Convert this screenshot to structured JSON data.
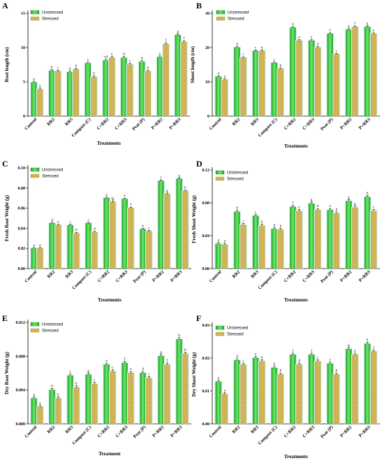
{
  "colors": {
    "unstressed_fill": "#2fc42f",
    "unstressed_highlight": "#7ff07f",
    "stressed_fill": "#c9c27a",
    "stressed_stripe": "#d9a020",
    "glow": "#d8f2f6",
    "axis": "#000000"
  },
  "chart_data": [
    {
      "panel": "A",
      "type": "bar",
      "categories": [
        "Control",
        "RR2",
        "RR3",
        "Compost (C)",
        "C+RR2",
        "C+RR3",
        "Peat (P)",
        "P+RR2",
        "P+RR3"
      ],
      "series": [
        {
          "name": "Unstressed",
          "values": [
            4.9,
            6.6,
            6.4,
            7.7,
            8.1,
            8.5,
            7.9,
            8.6,
            11.8
          ],
          "errors": [
            0.2,
            0.2,
            0.2,
            0.2,
            0.2,
            0.2,
            0.2,
            0.2,
            0.2
          ],
          "letters": [
            "a",
            "b",
            "b",
            "c",
            "cd",
            "d",
            "d",
            "e",
            "g"
          ]
        },
        {
          "name": "Stressed",
          "values": [
            3.9,
            6.5,
            6.8,
            5.7,
            8.5,
            7.5,
            6.5,
            10.5,
            10.8
          ],
          "errors": [
            0.2,
            0.2,
            0.2,
            0.2,
            0.2,
            0.2,
            0.2,
            0.2,
            0.2
          ],
          "letters": [
            "a",
            "c",
            "d",
            "b",
            "e",
            "c",
            "b",
            "f",
            "f"
          ]
        }
      ],
      "ylabel": "Root length (cm)",
      "xlabel": "Treatments",
      "ylim": [
        0,
        15
      ],
      "yticks": [
        "0",
        "5",
        "10",
        "15"
      ],
      "legend": "top-left"
    },
    {
      "panel": "B",
      "type": "bar",
      "categories": [
        "Control",
        "RR2",
        "RR3",
        "Compost (C)",
        "C+RR2",
        "C+RR3",
        "Peat (P)",
        "P+RR2",
        "P+RR3"
      ],
      "series": [
        {
          "name": "Unstressed",
          "values": [
            11.5,
            20,
            19,
            15.5,
            25.8,
            22,
            24,
            25.2,
            26
          ],
          "errors": [
            0.3,
            0.3,
            0.3,
            0.3,
            0.3,
            0.3,
            0.3,
            0.3,
            0.3
          ],
          "letters": [
            "a",
            "d",
            "c",
            "c",
            "h",
            "e",
            "f",
            "g",
            "g"
          ]
        },
        {
          "name": "Stressed",
          "values": [
            10.6,
            17,
            19,
            13.8,
            22,
            20,
            18,
            26,
            24
          ],
          "errors": [
            0.3,
            0.3,
            0.3,
            0.3,
            0.3,
            0.3,
            0.3,
            0.3,
            0.3
          ],
          "letters": [
            "a",
            "c",
            "d",
            "b",
            "e",
            "d",
            "c",
            "f",
            "e"
          ]
        }
      ],
      "ylabel": "Shoot length (cm)",
      "xlabel": "Treatments",
      "ylim": [
        0,
        30
      ],
      "yticks": [
        "0",
        "10",
        "20",
        "30"
      ],
      "legend": "top-left"
    },
    {
      "panel": "C",
      "type": "bar",
      "categories": [
        "Control",
        "RR2",
        "RR3",
        "Compost (C)",
        "C+RR2",
        "C+RR3",
        "Peat (P)",
        "P+RR2",
        "P+RR3"
      ],
      "series": [
        {
          "name": "Unstressed",
          "values": [
            0.02,
            0.045,
            0.043,
            0.045,
            0.07,
            0.069,
            0.039,
            0.087,
            0.089
          ],
          "errors": [
            0.001,
            0.001,
            0.001,
            0.001,
            0.001,
            0.001,
            0.001,
            0.001,
            0.001
          ],
          "letters": [
            "a",
            "d",
            "c",
            "c",
            "e",
            "e",
            "b",
            "f",
            "g"
          ]
        },
        {
          "name": "Stressed",
          "values": [
            0.02,
            0.043,
            0.035,
            0.036,
            0.066,
            0.06,
            0.037,
            0.074,
            0.077
          ],
          "errors": [
            0.001,
            0.001,
            0.001,
            0.001,
            0.001,
            0.001,
            0.001,
            0.001,
            0.001
          ],
          "letters": [
            "a",
            "e",
            "b",
            "d",
            "fg",
            "f",
            "c",
            "g",
            "h"
          ]
        }
      ],
      "ylabel": "Fresh Root Weight (g)",
      "xlabel": "Treatments",
      "ylim": [
        0,
        0.1
      ],
      "yticks": [
        "0.00",
        "0.02",
        "0.04",
        "0.06",
        "0.08",
        "0.10"
      ],
      "legend": "top-left"
    },
    {
      "panel": "D",
      "type": "bar",
      "categories": [
        "Control",
        "RR2",
        "RR3",
        "Compost (C)",
        "C+RR2",
        "C+RR3",
        "Peat (P)",
        "P+RR2",
        "P+RR3"
      ],
      "series": [
        {
          "name": "Unstressed",
          "values": [
            0.03,
            0.069,
            0.064,
            0.048,
            0.075,
            0.079,
            0.071,
            0.082,
            0.087
          ],
          "errors": [
            0.002,
            0.002,
            0.002,
            0.002,
            0.002,
            0.002,
            0.002,
            0.002,
            0.002
          ],
          "letters": [
            "a",
            "d",
            "c",
            "b",
            "f",
            "g",
            "e",
            "g",
            "h"
          ]
        },
        {
          "name": "Stressed",
          "values": [
            0.029,
            0.053,
            0.052,
            0.047,
            0.07,
            0.071,
            0.067,
            0.074,
            0.07
          ],
          "errors": [
            0.002,
            0.002,
            0.002,
            0.002,
            0.002,
            0.002,
            0.002,
            0.002,
            0.002
          ],
          "letters": [
            "a",
            "c",
            "b",
            "b",
            "e",
            "d",
            "d",
            "g",
            "c"
          ]
        }
      ],
      "ylabel": "Fresh Shoot Weight (g)",
      "xlabel": "Treatments",
      "ylim": [
        0,
        0.12
      ],
      "yticks": [
        "0.00",
        "0.04",
        "0.08",
        "0.12"
      ],
      "legend": "top-left"
    },
    {
      "panel": "E",
      "type": "bar",
      "categories": [
        "Control",
        "RR2",
        "RR3",
        "Compost (C)",
        "C+RR2",
        "C+RR3",
        "Peat (P)",
        "P+RR2",
        "P+RR3"
      ],
      "series": [
        {
          "name": "Unstressed",
          "values": [
            0.003,
            0.004,
            0.0057,
            0.0058,
            0.007,
            0.0072,
            0.006,
            0.008,
            0.01
          ],
          "errors": [
            0.0002,
            0.0002,
            0.0002,
            0.0002,
            0.0002,
            0.0002,
            0.0002,
            0.0002,
            0.0002
          ],
          "letters": [
            "a",
            "b",
            "c",
            "g",
            "e",
            "f",
            "d",
            "g",
            "b"
          ]
        },
        {
          "name": "Stressed",
          "values": [
            0.002,
            0.003,
            0.0043,
            0.0047,
            0.0062,
            0.006,
            0.0054,
            0.007,
            0.0083
          ],
          "errors": [
            0.0002,
            0.0002,
            0.0002,
            0.0002,
            0.0002,
            0.0002,
            0.0002,
            0.0002,
            0.0002
          ],
          "letters": [
            "a",
            "b",
            "b",
            "c",
            "c",
            "e",
            "c",
            "f",
            "b"
          ]
        }
      ],
      "ylabel": "Dry Root Weight (g)",
      "xlabel": "Treatment",
      "ylim": [
        0,
        0.012
      ],
      "yticks": [
        "0.000",
        "0.004",
        "0.008",
        "0.012"
      ],
      "legend": "top-left"
    },
    {
      "panel": "F",
      "type": "bar",
      "categories": [
        "Control",
        "RR2",
        "RR3",
        "Compost (C)",
        "C+RR2",
        "C+RR3",
        "Peat (P)",
        "P+RR2",
        "P+RR3"
      ],
      "series": [
        {
          "name": "Unstressed",
          "values": [
            0.0128,
            0.0193,
            0.02,
            0.017,
            0.021,
            0.021,
            0.0183,
            0.0227,
            0.0243
          ],
          "errors": [
            0.0005,
            0.0005,
            0.0005,
            0.0005,
            0.0005,
            0.0005,
            0.0005,
            0.0005,
            0.0005
          ],
          "letters": [
            "a",
            "d",
            "e",
            "b",
            "f",
            "f",
            "c",
            "g",
            "h"
          ]
        },
        {
          "name": "Stressed",
          "values": [
            0.009,
            0.018,
            0.019,
            0.015,
            0.018,
            0.019,
            0.015,
            0.021,
            0.022
          ],
          "errors": [
            0.0005,
            0.0005,
            0.0005,
            0.0005,
            0.0005,
            0.0005,
            0.0005,
            0.0005,
            0.0005
          ],
          "letters": [
            "a",
            "c",
            "d",
            "b",
            "d",
            "c",
            "b",
            "e",
            "f"
          ]
        }
      ],
      "ylabel": "Dry Shoot Weight (g)",
      "xlabel": "Treatments",
      "ylim": [
        0,
        0.03
      ],
      "yticks": [
        "0.00",
        "0.01",
        "0.02",
        "0.03"
      ],
      "legend": "top-left"
    }
  ]
}
